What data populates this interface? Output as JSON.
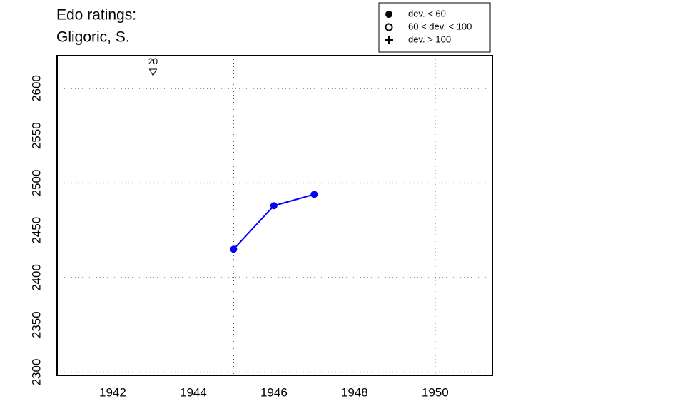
{
  "chart_data": {
    "type": "line",
    "title": "Edo ratings:",
    "subtitle": "Gligoric, S.",
    "x": [
      1945,
      1946,
      1947
    ],
    "series": [
      {
        "color": "#0000ff",
        "marker": "filled-circle",
        "values": [
          2430,
          2476,
          2488
        ]
      }
    ],
    "xlim": [
      1940.62,
      1951.42
    ],
    "ylim": [
      2296.6,
      2634.7
    ],
    "xticks": [
      1942,
      1944,
      1946,
      1948,
      1950
    ],
    "yticks": [
      2300,
      2350,
      2400,
      2450,
      2500,
      2550,
      2600
    ],
    "xgrid": [
      1945,
      1950
    ],
    "ygrid": [
      2300,
      2400,
      2500,
      2600
    ],
    "annotations": [
      {
        "x": 1943,
        "label": "20",
        "marker": "down-triangle"
      }
    ],
    "legend": [
      {
        "label": "dev. < 60",
        "marker": "filled-circle"
      },
      {
        "label": "60 < dev. < 100",
        "marker": "open-circle"
      },
      {
        "label": "dev. > 100",
        "marker": "plus"
      }
    ]
  }
}
